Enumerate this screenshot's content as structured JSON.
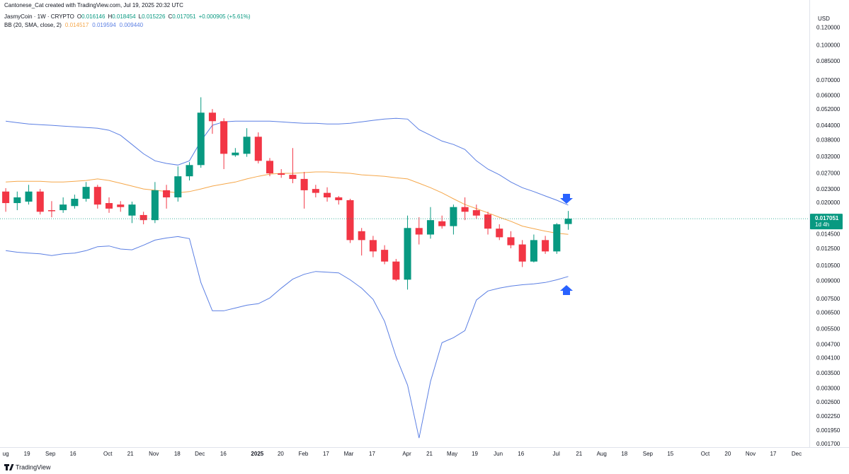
{
  "header": {
    "credit": "Cantonese_Cat created with TradingView.com, Jul 19, 2025 20:32 UTC"
  },
  "footer": {
    "brand": "TradingView"
  },
  "chart_data": {
    "type": "candlestick",
    "legend": {
      "title": "JasmyCoin · 1W · CRYPTO",
      "ohlc_keys": [
        "O",
        "H",
        "L",
        "C"
      ],
      "change": "+0.000905 (+5.61%)",
      "indicator": "BB (20, SMA, close, 2)",
      "indicator_values": [
        "0.014517",
        "0.019594",
        "0.009440"
      ]
    },
    "currency": "USD",
    "countdown": "1d 4h",
    "up_color": "#089981",
    "down_color": "#f23645",
    "log_scale": true,
    "grid": false,
    "candles": {
      "open": [
        0.0225,
        0.02,
        0.0203,
        0.0225,
        0.0186,
        0.0186,
        0.0194,
        0.0209,
        0.0236,
        0.02,
        0.0197,
        0.0176,
        0.0177,
        0.0168,
        0.0228,
        0.0212,
        0.0263,
        0.0295,
        0.0504,
        0.0462,
        0.0326,
        0.0331,
        0.0394,
        0.0308,
        0.0271,
        0.0267,
        0.0256,
        0.0231,
        0.0222,
        0.0212,
        0.0206,
        0.015,
        0.0137,
        0.0124,
        0.011,
        0.00914,
        0.0155,
        0.0145,
        0.0166,
        0.0158,
        0.0192,
        0.0186,
        0.0178,
        0.0154,
        0.0141,
        0.0131,
        0.011,
        0.0137,
        0.0122,
        0.016146
      ],
      "high": [
        0.0233,
        0.0225,
        0.0241,
        0.0231,
        0.0204,
        0.0212,
        0.0218,
        0.0248,
        0.0241,
        0.0212,
        0.0204,
        0.0203,
        0.0183,
        0.0248,
        0.0241,
        0.0291,
        0.0304,
        0.059,
        0.0523,
        0.0476,
        0.0351,
        0.043,
        0.0412,
        0.0317,
        0.0283,
        0.0351,
        0.0275,
        0.0241,
        0.0235,
        0.0215,
        0.0209,
        0.0155,
        0.0143,
        0.013,
        0.0113,
        0.0176,
        0.0173,
        0.0192,
        0.0176,
        0.0197,
        0.0212,
        0.0197,
        0.0183,
        0.0161,
        0.015,
        0.0137,
        0.0145,
        0.0143,
        0.0163,
        0.018454
      ],
      "low": [
        0.0183,
        0.0186,
        0.0197,
        0.0178,
        0.0173,
        0.0181,
        0.0189,
        0.0203,
        0.0189,
        0.0181,
        0.0183,
        0.0163,
        0.0161,
        0.0163,
        0.0189,
        0.0203,
        0.0252,
        0.0287,
        0.0406,
        0.0283,
        0.0321,
        0.0321,
        0.03,
        0.0263,
        0.0259,
        0.0245,
        0.0189,
        0.0212,
        0.0203,
        0.0197,
        0.0133,
        0.0117,
        0.0115,
        0.0107,
        0.00901,
        0.00826,
        0.0131,
        0.0139,
        0.0154,
        0.0145,
        0.0168,
        0.017,
        0.0145,
        0.0137,
        0.0126,
        0.0104,
        0.0109,
        0.0119,
        0.0119,
        0.015226
      ],
      "close": [
        0.02,
        0.0212,
        0.0225,
        0.0183,
        0.0184,
        0.0197,
        0.0209,
        0.0236,
        0.0197,
        0.0189,
        0.0192,
        0.0197,
        0.0168,
        0.0228,
        0.0212,
        0.0263,
        0.0295,
        0.0504,
        0.0462,
        0.0331,
        0.0335,
        0.0394,
        0.0308,
        0.0271,
        0.0267,
        0.0256,
        0.0228,
        0.0222,
        0.0212,
        0.0206,
        0.0137,
        0.0137,
        0.0122,
        0.011,
        0.00914,
        0.0155,
        0.0145,
        0.0168,
        0.0158,
        0.0192,
        0.0183,
        0.0176,
        0.0154,
        0.0141,
        0.013,
        0.011,
        0.0137,
        0.0122,
        0.0161,
        0.017051
      ]
    },
    "bands": {
      "basis": {
        "color": "#f5a74a",
        "values": [
          0.0248,
          0.025,
          0.025,
          0.025,
          0.0248,
          0.0248,
          0.025,
          0.0252,
          0.0256,
          0.0252,
          0.0245,
          0.0238,
          0.0231,
          0.0228,
          0.0225,
          0.0222,
          0.0225,
          0.0231,
          0.0238,
          0.0243,
          0.0248,
          0.0256,
          0.0263,
          0.0269,
          0.0271,
          0.0271,
          0.0273,
          0.0275,
          0.0275,
          0.0273,
          0.0271,
          0.0267,
          0.0265,
          0.0263,
          0.0259,
          0.0256,
          0.0245,
          0.0234,
          0.0222,
          0.0209,
          0.0197,
          0.0189,
          0.0181,
          0.0173,
          0.0166,
          0.0158,
          0.0154,
          0.015,
          0.0147,
          0.014517
        ]
      },
      "upper": {
        "color": "#5b7fe3",
        "values": [
          0.0462,
          0.0455,
          0.0449,
          0.0446,
          0.0443,
          0.0439,
          0.0436,
          0.0433,
          0.043,
          0.0421,
          0.04,
          0.0364,
          0.0331,
          0.0308,
          0.03,
          0.0295,
          0.0308,
          0.0377,
          0.0443,
          0.0459,
          0.0462,
          0.0462,
          0.0462,
          0.0462,
          0.0459,
          0.0455,
          0.0452,
          0.0452,
          0.0449,
          0.0449,
          0.0452,
          0.0459,
          0.0466,
          0.0472,
          0.0476,
          0.0472,
          0.0424,
          0.04,
          0.0377,
          0.0364,
          0.0346,
          0.0308,
          0.0283,
          0.0267,
          0.0248,
          0.0234,
          0.0225,
          0.0215,
          0.0206,
          0.019594
        ]
      },
      "lower": {
        "color": "#5b7fe3",
        "values": [
          0.0123,
          0.0121,
          0.012,
          0.0119,
          0.0117,
          0.0119,
          0.012,
          0.0123,
          0.0128,
          0.0129,
          0.0125,
          0.0124,
          0.013,
          0.0137,
          0.014,
          0.0142,
          0.0139,
          0.00888,
          0.00665,
          0.00665,
          0.00684,
          0.00704,
          0.00715,
          0.00758,
          0.00838,
          0.00919,
          0.00966,
          0.00994,
          0.00987,
          0.0098,
          0.00913,
          0.00838,
          0.00747,
          0.00597,
          0.00416,
          0.00311,
          0.00181,
          0.00323,
          0.0048,
          0.00505,
          0.00543,
          0.00742,
          0.00814,
          0.00838,
          0.00856,
          0.00868,
          0.00875,
          0.00888,
          0.00913,
          0.00944
        ]
      }
    },
    "xlim": [
      -0.5,
      70
    ],
    "xticks": [
      {
        "value": 0,
        "label": "ug"
      },
      {
        "value": 1.85,
        "label": "19"
      },
      {
        "value": 3.89,
        "label": "Sep"
      },
      {
        "value": 5.86,
        "label": "16"
      },
      {
        "value": 8.89,
        "label": "Oct"
      },
      {
        "value": 10.86,
        "label": "21"
      },
      {
        "value": 12.9,
        "label": "Nov"
      },
      {
        "value": 14.94,
        "label": "18"
      },
      {
        "value": 16.91,
        "label": "Dec"
      },
      {
        "value": 18.95,
        "label": "16"
      },
      {
        "value": 21.91,
        "label": "2025",
        "bold": true
      },
      {
        "value": 23.95,
        "label": "20"
      },
      {
        "value": 25.93,
        "label": "Feb"
      },
      {
        "value": 27.9,
        "label": "17"
      },
      {
        "value": 29.88,
        "label": "Mar"
      },
      {
        "value": 31.91,
        "label": "17"
      },
      {
        "value": 34.94,
        "label": "Apr"
      },
      {
        "value": 36.91,
        "label": "21"
      },
      {
        "value": 38.89,
        "label": "May"
      },
      {
        "value": 40.86,
        "label": "19"
      },
      {
        "value": 42.9,
        "label": "Jun"
      },
      {
        "value": 44.88,
        "label": "16"
      },
      {
        "value": 47.96,
        "label": "Jul"
      },
      {
        "value": 49.94,
        "label": "21"
      },
      {
        "value": 51.91,
        "label": "Aug"
      },
      {
        "value": 53.89,
        "label": "18"
      },
      {
        "value": 55.93,
        "label": "Sep"
      },
      {
        "value": 57.9,
        "label": "15"
      },
      {
        "value": 60.93,
        "label": "Oct"
      },
      {
        "value": 62.9,
        "label": "20"
      },
      {
        "value": 64.88,
        "label": "Nov"
      },
      {
        "value": 66.85,
        "label": "17"
      },
      {
        "value": 68.89,
        "label": "Dec"
      }
    ],
    "ylim": [
      0.00165,
      0.14
    ],
    "yticks": [
      {
        "value": 0.12,
        "label": "0.120000"
      },
      {
        "value": 0.1,
        "label": "0.100000"
      },
      {
        "value": 0.085,
        "label": "0.085000"
      },
      {
        "value": 0.07,
        "label": "0.070000"
      },
      {
        "value": 0.06,
        "label": "0.060000"
      },
      {
        "value": 0.052,
        "label": "0.052000"
      },
      {
        "value": 0.044,
        "label": "0.044000"
      },
      {
        "value": 0.038,
        "label": "0.038000"
      },
      {
        "value": 0.032,
        "label": "0.032000"
      },
      {
        "value": 0.027,
        "label": "0.027000"
      },
      {
        "value": 0.023,
        "label": "0.023000"
      },
      {
        "value": 0.02,
        "label": "0.020000"
      },
      {
        "value": 0.0145,
        "label": "0.014500"
      },
      {
        "value": 0.0125,
        "label": "0.012500"
      },
      {
        "value": 0.0105,
        "label": "0.010500"
      },
      {
        "value": 0.009,
        "label": "0.009000"
      },
      {
        "value": 0.0075,
        "label": "0.007500"
      },
      {
        "value": 0.0065,
        "label": "0.006500"
      },
      {
        "value": 0.0055,
        "label": "0.005500"
      },
      {
        "value": 0.0047,
        "label": "0.004700"
      },
      {
        "value": 0.0041,
        "label": "0.004100"
      },
      {
        "value": 0.0035,
        "label": "0.003500"
      },
      {
        "value": 0.003,
        "label": "0.003000"
      },
      {
        "value": 0.0026,
        "label": "0.002600"
      },
      {
        "value": 0.00225,
        "label": "0.002250"
      },
      {
        "value": 0.00195,
        "label": "0.001950"
      },
      {
        "value": 0.0017,
        "label": "0.001700"
      }
    ]
  }
}
